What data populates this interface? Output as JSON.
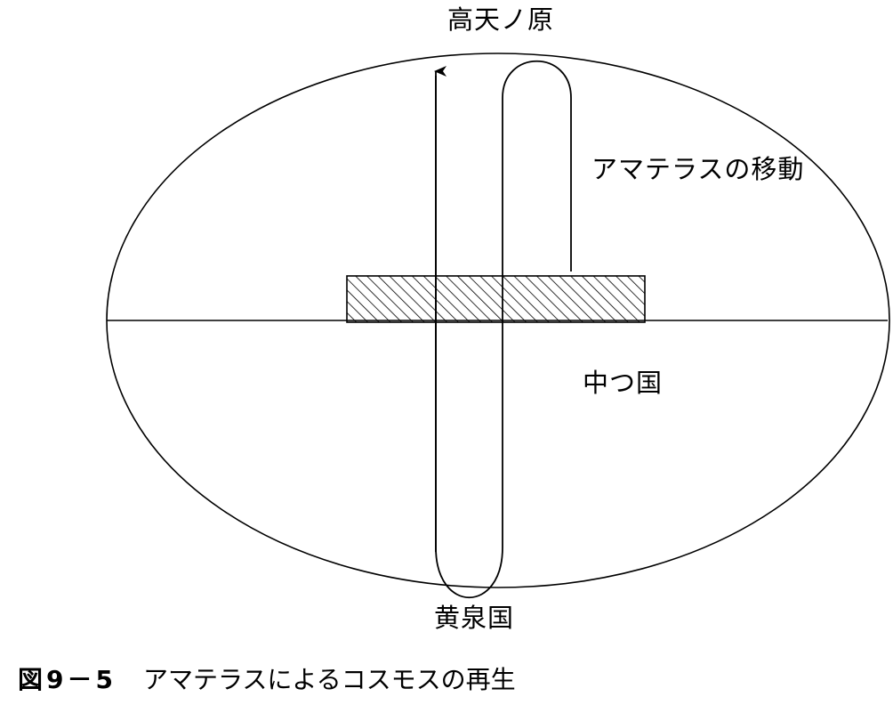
{
  "diagram": {
    "label_top": "高天ノ原",
    "label_movement": "アマテラスの移動",
    "label_middle": "中つ国",
    "label_bottom": "黄泉国"
  },
  "caption": {
    "figure_number": "図9－5",
    "text": "アマテラスによるコスモスの再生"
  }
}
